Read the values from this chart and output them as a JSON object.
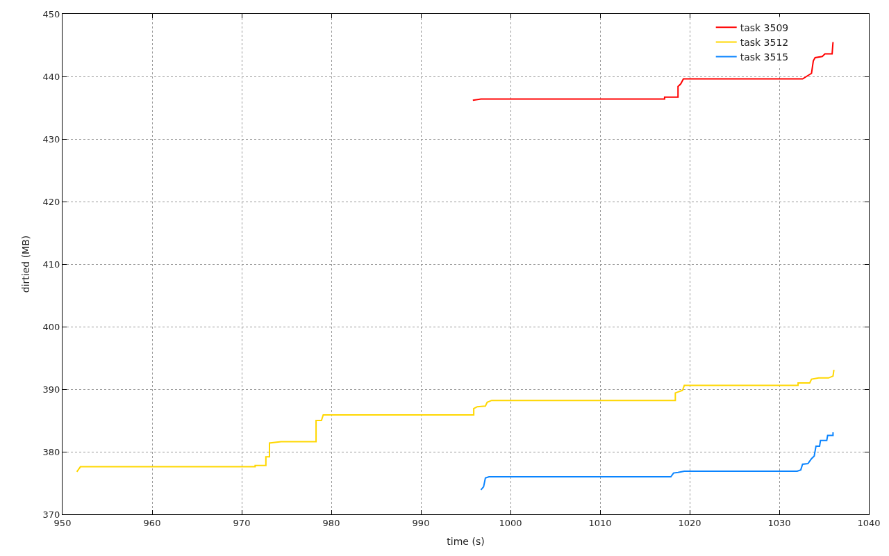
{
  "chart_data": {
    "type": "line",
    "xlabel": "time (s)",
    "ylabel": "dirtied (MB)",
    "xlim": [
      950,
      1040
    ],
    "xticks": [
      950,
      960,
      970,
      980,
      990,
      1000,
      1010,
      1020,
      1030,
      1040
    ],
    "ylim": [
      370,
      450
    ],
    "yticks": [
      370,
      380,
      390,
      400,
      410,
      420,
      430,
      440,
      450
    ],
    "grid": true,
    "legend": "top right",
    "line_style": "solid",
    "marker": "none",
    "series": [
      {
        "name": "task 3509",
        "color": "#ff0000",
        "x": [
          995.8,
          996.7,
          1017.2,
          1017.2,
          1018.7,
          1018.7,
          1019.0,
          1019.3,
          1032.6,
          1033.6,
          1033.8,
          1034.0,
          1034.8,
          1035.1,
          1035.9,
          1036.0
        ],
        "values": [
          436.2,
          436.4,
          436.4,
          436.7,
          436.7,
          438.4,
          438.8,
          439.6,
          439.6,
          440.5,
          442.5,
          443.0,
          443.2,
          443.6,
          443.6,
          445.5
        ]
      },
      {
        "name": "task 3512",
        "color": "#ffd700",
        "x": [
          951.6,
          952.0,
          971.5,
          971.5,
          972.7,
          972.7,
          973.1,
          973.1,
          974.4,
          978.3,
          978.3,
          978.9,
          979.1,
          995.9,
          995.9,
          996.3,
          997.2,
          997.4,
          997.9,
          1018.4,
          1018.4,
          1019.2,
          1019.4,
          1032.1,
          1032.1,
          1033.4,
          1033.6,
          1034.4,
          1035.5,
          1036.0,
          1036.1
        ],
        "values": [
          376.8,
          377.6,
          377.6,
          377.8,
          377.8,
          379.2,
          379.2,
          381.4,
          381.6,
          381.6,
          385.0,
          385.0,
          385.9,
          385.9,
          386.9,
          387.2,
          387.3,
          387.9,
          388.2,
          388.2,
          389.4,
          389.8,
          390.6,
          390.6,
          391.0,
          391.0,
          391.6,
          391.8,
          391.8,
          392.1,
          393.1
        ]
      },
      {
        "name": "task 3515",
        "color": "#0a84ff",
        "x": [
          996.7,
          997.0,
          997.2,
          997.6,
          998.3,
          1017.9,
          1018.2,
          1018.7,
          1019.4,
          1032.0,
          1032.4,
          1032.6,
          1033.2,
          1033.6,
          1033.9,
          1034.1,
          1034.5,
          1034.6,
          1035.3,
          1035.4,
          1036.0,
          1036.0
        ],
        "values": [
          373.9,
          374.4,
          375.8,
          376.0,
          376.0,
          376.0,
          376.6,
          376.7,
          376.9,
          376.9,
          377.1,
          378.0,
          378.1,
          378.9,
          379.3,
          380.9,
          380.9,
          381.8,
          381.8,
          382.6,
          382.6,
          383.1
        ]
      }
    ]
  }
}
